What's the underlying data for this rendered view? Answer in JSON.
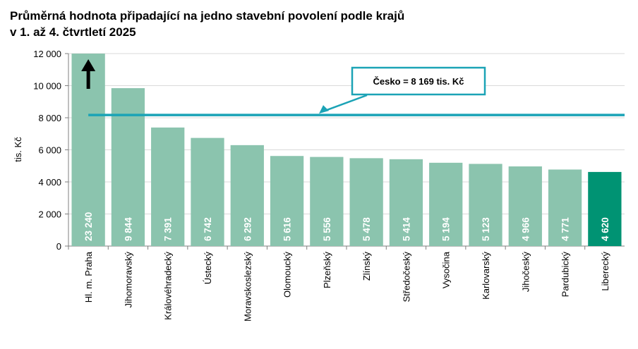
{
  "chart_data": {
    "type": "bar",
    "title": [
      "Průměrná hodnota připadající na jedno stavební povolení podle krajů",
      "v 1. až 4. čtvrtletí 2025"
    ],
    "y_label": "tis. Kč",
    "categories": [
      "Hl. m. Praha",
      "Jihomoravský",
      "Královéhradecký",
      "Ústecký",
      "Moravskoslezský",
      "Olomoucký",
      "Plzeňský",
      "Zlínský",
      "Středočeský",
      "Vysočina",
      "Karlovarský",
      "Jihočeský",
      "Pardubický",
      "Liberecký"
    ],
    "values": [
      23240,
      9844,
      7391,
      6742,
      6292,
      5616,
      5556,
      5478,
      5414,
      5194,
      5123,
      4966,
      4771,
      4620
    ],
    "value_labels": [
      "23 240",
      "9 844",
      "7 391",
      "6 742",
      "6 292",
      "5 616",
      "5 556",
      "5 478",
      "5 414",
      "5 194",
      "5 123",
      "4 966",
      "4 771",
      "4 620"
    ],
    "colors": [
      "#8bc4ae",
      "#8bc4ae",
      "#8bc4ae",
      "#8bc4ae",
      "#8bc4ae",
      "#8bc4ae",
      "#8bc4ae",
      "#8bc4ae",
      "#8bc4ae",
      "#8bc4ae",
      "#8bc4ae",
      "#8bc4ae",
      "#8bc4ae",
      "#009373"
    ],
    "ylim": [
      0,
      12000
    ],
    "yticks": [
      0,
      {
        "value": 2000,
        "label": "2 000"
      },
      {
        "value": 4000,
        "label": "4 000"
      },
      {
        "value": 6000,
        "label": "6 000"
      },
      {
        "value": 8000,
        "label": "8 000"
      },
      {
        "value": 10000,
        "label": "10 000"
      },
      {
        "value": 12000,
        "label": "12 000"
      }
    ],
    "grid": true,
    "reference_line": {
      "value": 8169,
      "label": "Česko = 8 169 tis. Kč",
      "color": "#1ba3b6"
    }
  }
}
